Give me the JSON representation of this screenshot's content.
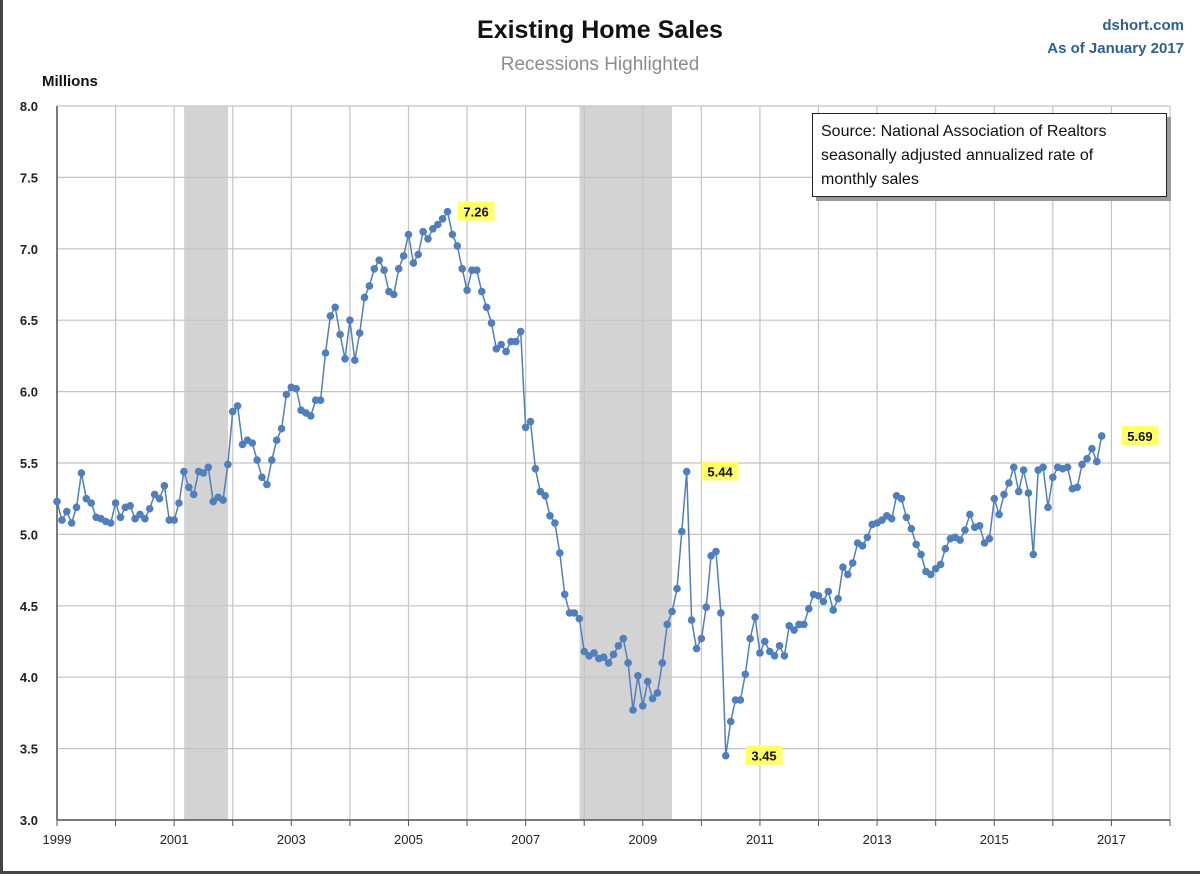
{
  "header": {
    "title": "Existing Home Sales",
    "subtitle": "Recessions Highlighted",
    "site": "dshort.com",
    "as_of": "As of January 2017"
  },
  "source_note": {
    "lines": [
      "Source: National Association of Realtors",
      "seasonally adjusted annualized rate of",
      "monthly sales"
    ]
  },
  "colors": {
    "series": "#4f7fbd",
    "recession": "#d3d3d3",
    "grid": "#c4c4c4",
    "callout": "#ffff66"
  },
  "chart_data": {
    "type": "line",
    "title": "Existing Home Sales",
    "subtitle": "Recessions Highlighted",
    "xlabel": "",
    "ylabel": "Millions",
    "ylim": [
      3.0,
      8.0
    ],
    "xlim": [
      1999.0,
      2018.0
    ],
    "grid": true,
    "y_ticks": [
      3.0,
      3.5,
      4.0,
      4.5,
      5.0,
      5.5,
      6.0,
      6.5,
      7.0,
      7.5,
      8.0
    ],
    "y_tick_labels": [
      "3.0",
      "3.5",
      "4.0",
      "4.5",
      "5.0",
      "5.5",
      "6.0",
      "6.5",
      "7.0",
      "7.5",
      "8.0"
    ],
    "x_ticks": [
      1999,
      2000,
      2001,
      2002,
      2003,
      2004,
      2005,
      2006,
      2007,
      2008,
      2009,
      2010,
      2011,
      2012,
      2013,
      2014,
      2015,
      2016,
      2017,
      2018
    ],
    "x_tick_labels": [
      "1999",
      "",
      "2001",
      "",
      "2003",
      "",
      "2005",
      "",
      "2007",
      "",
      "2009",
      "",
      "2011",
      "",
      "2013",
      "",
      "2015",
      "",
      "2017",
      ""
    ],
    "recessions": [
      {
        "start": 2001.17,
        "end": 2001.92
      },
      {
        "start": 2007.92,
        "end": 2009.5
      }
    ],
    "series": [
      {
        "name": "Existing Home Sales (Millions, SAAR)",
        "start_year": 1999.0,
        "step": 0.0833333,
        "values": [
          5.23,
          5.1,
          5.16,
          5.08,
          5.19,
          5.43,
          5.25,
          5.22,
          5.12,
          5.11,
          5.09,
          5.08,
          5.22,
          5.12,
          5.19,
          5.2,
          5.11,
          5.14,
          5.11,
          5.18,
          5.28,
          5.25,
          5.34,
          5.1,
          5.1,
          5.22,
          5.44,
          5.33,
          5.28,
          5.44,
          5.43,
          5.47,
          5.23,
          5.26,
          5.24,
          5.49,
          5.86,
          5.9,
          5.63,
          5.66,
          5.64,
          5.52,
          5.4,
          5.35,
          5.52,
          5.66,
          5.74,
          5.98,
          6.03,
          6.02,
          5.87,
          5.85,
          5.83,
          5.94,
          5.94,
          6.27,
          6.53,
          6.59,
          6.4,
          6.23,
          6.5,
          6.22,
          6.41,
          6.66,
          6.74,
          6.86,
          6.92,
          6.85,
          6.7,
          6.68,
          6.86,
          6.95,
          7.1,
          6.9,
          6.96,
          7.12,
          7.07,
          7.14,
          7.17,
          7.21,
          7.26,
          7.1,
          7.02,
          6.86,
          6.71,
          6.85,
          6.85,
          6.7,
          6.59,
          6.48,
          6.3,
          6.33,
          6.28,
          6.35,
          6.35,
          6.42,
          5.75,
          5.79,
          5.46,
          5.3,
          5.27,
          5.13,
          5.08,
          4.87,
          4.58,
          4.45,
          4.45,
          4.41,
          4.18,
          4.15,
          4.17,
          4.13,
          4.14,
          4.1,
          4.16,
          4.22,
          4.27,
          4.1,
          3.77,
          4.01,
          3.8,
          3.97,
          3.85,
          3.89,
          4.1,
          4.37,
          4.46,
          4.62,
          5.02,
          5.44,
          4.4,
          4.2,
          4.27,
          4.49,
          4.85,
          4.88,
          4.45,
          3.45,
          3.69,
          3.84,
          3.84,
          4.02,
          4.27,
          4.42,
          4.17,
          4.25,
          4.18,
          4.15,
          4.22,
          4.15,
          4.36,
          4.33,
          4.37,
          4.37,
          4.48,
          4.58,
          4.57,
          4.53,
          4.6,
          4.47,
          4.55,
          4.77,
          4.72,
          4.8,
          4.94,
          4.92,
          4.98,
          5.07,
          5.08,
          5.1,
          5.13,
          5.11,
          5.27,
          5.25,
          5.12,
          5.04,
          4.93,
          4.86,
          4.74,
          4.72,
          4.76,
          4.79,
          4.9,
          4.97,
          4.98,
          4.96,
          5.03,
          5.14,
          5.05,
          5.06,
          4.94,
          4.97,
          5.25,
          5.14,
          5.28,
          5.36,
          5.47,
          5.3,
          5.45,
          5.29,
          4.86,
          5.45,
          5.47,
          5.19,
          5.4,
          5.47,
          5.46,
          5.47,
          5.32,
          5.33,
          5.49,
          5.53,
          5.6,
          5.51,
          5.69
        ]
      }
    ],
    "annotations": [
      {
        "label": "7.26",
        "x": 2005.667,
        "y": 7.26
      },
      {
        "label": "5.44",
        "x": 2009.833,
        "y": 5.44
      },
      {
        "label": "3.45",
        "x": 2010.583,
        "y": 3.45
      },
      {
        "label": "5.69",
        "x": 2017.0,
        "y": 5.69
      }
    ]
  }
}
